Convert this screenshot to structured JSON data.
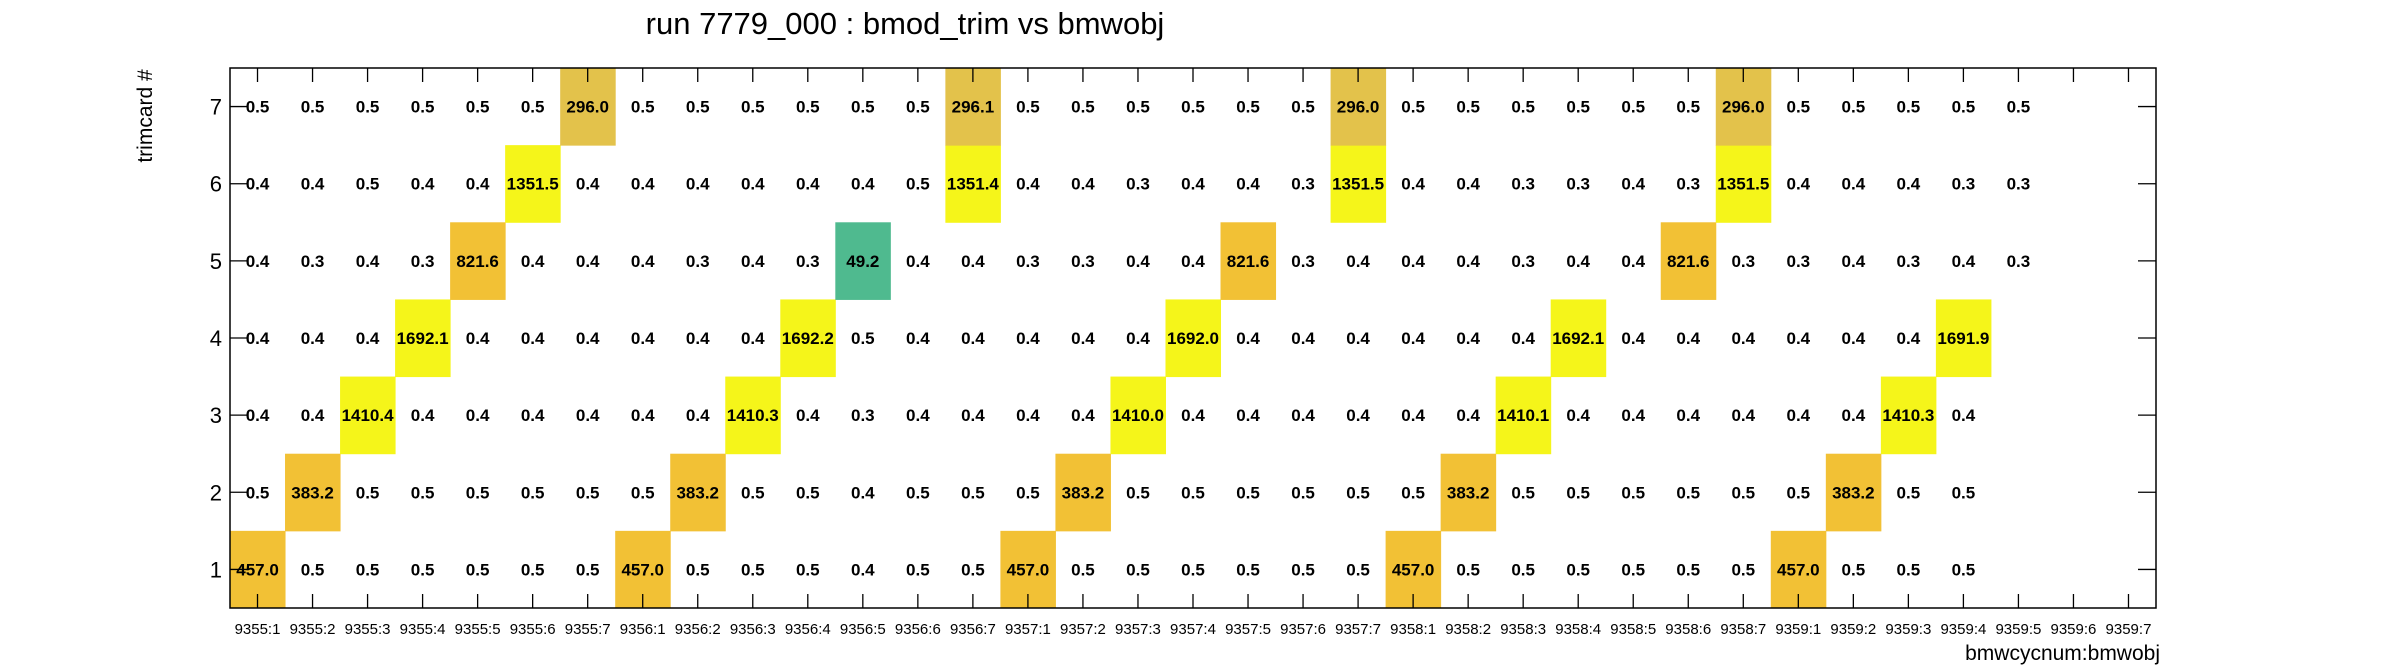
{
  "chart_data": {
    "type": "heatmap",
    "title": "run 7779_000 : bmod_trim vs bmwobj",
    "xlabel": "bmwcycnum:bmwobj",
    "ylabel": "trimcard #",
    "x_categories": [
      "9355:1",
      "9355:2",
      "9355:3",
      "9355:4",
      "9355:5",
      "9355:6",
      "9355:7",
      "9356:1",
      "9356:2",
      "9356:3",
      "9356:4",
      "9356:5",
      "9356:6",
      "9356:7",
      "9357:1",
      "9357:2",
      "9357:3",
      "9357:4",
      "9357:5",
      "9357:6",
      "9357:7",
      "9358:1",
      "9358:2",
      "9358:3",
      "9358:4",
      "9358:5",
      "9358:6",
      "9358:7",
      "9359:1",
      "9359:2",
      "9359:3",
      "9359:4",
      "9359:5",
      "9359:6",
      "9359:7"
    ],
    "y_categories": [
      "1",
      "2",
      "3",
      "4",
      "5",
      "6",
      "7"
    ],
    "cells": [
      [
        "457.0",
        "0.5",
        "0.5",
        "0.5",
        "0.5",
        "0.5",
        "0.5",
        "457.0",
        "0.5",
        "0.5",
        "0.5",
        "0.4",
        "0.5",
        "0.5",
        "457.0",
        "0.5",
        "0.5",
        "0.5",
        "0.5",
        "0.5",
        "0.5",
        "457.0",
        "0.5",
        "0.5",
        "0.5",
        "0.5",
        "0.5",
        "0.5",
        "457.0",
        "0.5",
        "0.5",
        "0.5",
        "",
        "",
        ""
      ],
      [
        "0.5",
        "383.2",
        "0.5",
        "0.5",
        "0.5",
        "0.5",
        "0.5",
        "0.5",
        "383.2",
        "0.5",
        "0.5",
        "0.4",
        "0.5",
        "0.5",
        "0.5",
        "383.2",
        "0.5",
        "0.5",
        "0.5",
        "0.5",
        "0.5",
        "0.5",
        "383.2",
        "0.5",
        "0.5",
        "0.5",
        "0.5",
        "0.5",
        "0.5",
        "383.2",
        "0.5",
        "0.5",
        "",
        "",
        ""
      ],
      [
        "0.4",
        "0.4",
        "1410.4",
        "0.4",
        "0.4",
        "0.4",
        "0.4",
        "0.4",
        "0.4",
        "1410.3",
        "0.4",
        "0.3",
        "0.4",
        "0.4",
        "0.4",
        "0.4",
        "1410.0",
        "0.4",
        "0.4",
        "0.4",
        "0.4",
        "0.4",
        "0.4",
        "1410.1",
        "0.4",
        "0.4",
        "0.4",
        "0.4",
        "0.4",
        "0.4",
        "1410.3",
        "0.4",
        "",
        "",
        ""
      ],
      [
        "0.4",
        "0.4",
        "0.4",
        "1692.1",
        "0.4",
        "0.4",
        "0.4",
        "0.4",
        "0.4",
        "0.4",
        "1692.2",
        "0.5",
        "0.4",
        "0.4",
        "0.4",
        "0.4",
        "0.4",
        "1692.0",
        "0.4",
        "0.4",
        "0.4",
        "0.4",
        "0.4",
        "0.4",
        "1692.1",
        "0.4",
        "0.4",
        "0.4",
        "0.4",
        "0.4",
        "0.4",
        "1691.9",
        "",
        "",
        ""
      ],
      [
        "0.4",
        "0.3",
        "0.4",
        "0.3",
        "821.6",
        "0.4",
        "0.4",
        "0.4",
        "0.3",
        "0.4",
        "0.3",
        "49.2",
        "0.4",
        "0.4",
        "0.3",
        "0.3",
        "0.4",
        "0.4",
        "821.6",
        "0.3",
        "0.4",
        "0.4",
        "0.4",
        "0.3",
        "0.4",
        "0.4",
        "821.6",
        "0.3",
        "0.3",
        "0.4",
        "0.3",
        "0.4",
        "0.3",
        "",
        ""
      ],
      [
        "0.4",
        "0.4",
        "0.5",
        "0.4",
        "0.4",
        "1351.5",
        "0.4",
        "0.4",
        "0.4",
        "0.4",
        "0.4",
        "0.4",
        "0.5",
        "1351.4",
        "0.4",
        "0.4",
        "0.3",
        "0.4",
        "0.4",
        "0.3",
        "1351.5",
        "0.4",
        "0.4",
        "0.3",
        "0.3",
        "0.4",
        "0.3",
        "1351.5",
        "0.4",
        "0.4",
        "0.4",
        "0.3",
        "0.3",
        "",
        ""
      ],
      [
        "0.5",
        "0.5",
        "0.5",
        "0.5",
        "0.5",
        "0.5",
        "296.0",
        "0.5",
        "0.5",
        "0.5",
        "0.5",
        "0.5",
        "0.5",
        "296.1",
        "0.5",
        "0.5",
        "0.5",
        "0.5",
        "0.5",
        "0.5",
        "296.0",
        "0.5",
        "0.5",
        "0.5",
        "0.5",
        "0.5",
        "0.5",
        "296.0",
        "0.5",
        "0.5",
        "0.5",
        "0.5",
        "0.5",
        "",
        ""
      ]
    ],
    "colors": {
      "low": "#ffffff",
      "yellow": "#f5f51a",
      "orange": "#f2c135",
      "gold": "#e3c24b",
      "teal": "#4fba8f"
    },
    "grid": false,
    "legend": "none"
  }
}
